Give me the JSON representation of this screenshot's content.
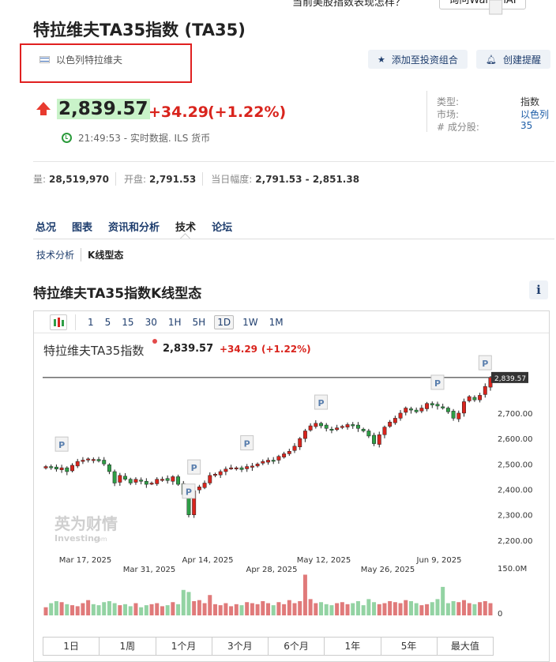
{
  "banner": {
    "question": "当前美股指数表现怎样？",
    "ask_button": "询问WarrenAI"
  },
  "header": {
    "title": "特拉维夫TA35指数 (TA35)",
    "country_tag": "以色列特拉维夫",
    "add_portfolio": "添加至投资组合",
    "create_alert": "创建提醒"
  },
  "quote": {
    "price": "2,839.57",
    "change": "+34.29",
    "change_pct": "(+1.22%)",
    "time_info": "21:49:53 - 实时数据. ILS 货币"
  },
  "info": [
    {
      "label": "类型:",
      "value": "指数"
    },
    {
      "label": "市场:",
      "value": "以色列"
    },
    {
      "label": "# 成分股:",
      "value": "35"
    }
  ],
  "stats": [
    {
      "label": "量:",
      "value": "28,519,970"
    },
    {
      "label": "开盘:",
      "value": "2,791.53"
    },
    {
      "label": "当日幅度:",
      "value": "2,791.53 - 2,851.38"
    }
  ],
  "tabs": [
    "总况",
    "图表",
    "资讯和分析",
    "技术",
    "论坛"
  ],
  "active_tab": "技术",
  "subtabs": [
    "技术分析",
    "K线型态"
  ],
  "section_title": "特拉维夫TA35指数K线型态",
  "info_icon": "i",
  "toolbar": {
    "intervals": [
      "1",
      "5",
      "15",
      "30",
      "1H",
      "5H",
      "1D",
      "1W",
      "1M"
    ],
    "selected": "1D"
  },
  "chart_header": {
    "name": "特拉维夫TA35指数",
    "price": "2,839.57",
    "change": "+34.29",
    "change_pct": "(+1.22%)"
  },
  "watermark": {
    "brand": "英为财情",
    "sub": "Investing",
    "suffix": ".com"
  },
  "ranges": [
    "1日",
    "1周",
    "1个月",
    "3个月",
    "6个月",
    "1年",
    "5年",
    "最大值"
  ],
  "colors": {
    "up": "#d9241d",
    "down": "#2e9e46",
    "link": "#1f3e6e",
    "vol_up": "#e07a7a",
    "vol_down": "#93d3a3"
  },
  "chart_data": {
    "type": "candlestick",
    "last_price_label": "2,839.57",
    "ylim": [
      2150,
      2880
    ],
    "y_ticks": [
      "2,700.00",
      "2,600.00",
      "2,500.00",
      "2,400.00",
      "2,300.00",
      "2,200.00"
    ],
    "y_tick_values": [
      2700,
      2600,
      2500,
      2400,
      2300,
      2200
    ],
    "x_labels_row1": [
      "Mar 17, 2025",
      "Apr 14, 2025",
      "May 12, 2025",
      "Jun 9, 2025"
    ],
    "x_labels_row2": [
      "Mar 31, 2025",
      "Apr 28, 2025",
      "May 26, 2025"
    ],
    "volume_axis_labels": [
      "150.0M",
      "0"
    ],
    "pattern_marker": "P",
    "pattern_indices": [
      3,
      27,
      28,
      38,
      52,
      74,
      83,
      85
    ],
    "closes": [
      2490,
      2485,
      2480,
      2485,
      2470,
      2495,
      2510,
      2515,
      2520,
      2518,
      2512,
      2500,
      2470,
      2425,
      2455,
      2440,
      2425,
      2440,
      2432,
      2420,
      2425,
      2440,
      2440,
      2435,
      2450,
      2420,
      2380,
      2300,
      2395,
      2410,
      2425,
      2455,
      2460,
      2470,
      2480,
      2485,
      2485,
      2478,
      2490,
      2492,
      2500,
      2510,
      2515,
      2512,
      2530,
      2540,
      2550,
      2570,
      2600,
      2630,
      2650,
      2660,
      2650,
      2640,
      2635,
      2642,
      2648,
      2655,
      2650,
      2640,
      2630,
      2610,
      2580,
      2615,
      2645,
      2665,
      2680,
      2700,
      2720,
      2712,
      2705,
      2720,
      2738,
      2732,
      2728,
      2720,
      2705,
      2680,
      2700,
      2745,
      2765,
      2752,
      2770,
      2805,
      2840
    ],
    "volumes": [
      8,
      12,
      14,
      13,
      11,
      10,
      9,
      12,
      15,
      11,
      10,
      13,
      14,
      12,
      10,
      11,
      9,
      12,
      8,
      10,
      11,
      12,
      9,
      10,
      13,
      11,
      25,
      23,
      14,
      15,
      12,
      20,
      11,
      10,
      12,
      9,
      11,
      10,
      13,
      12,
      11,
      14,
      12,
      10,
      13,
      11,
      15,
      12,
      14,
      40,
      16,
      12,
      13,
      11,
      10,
      12,
      13,
      11,
      12,
      14,
      10,
      16,
      13,
      11,
      12,
      14,
      13,
      12,
      15,
      14,
      12,
      10,
      11,
      13,
      16,
      28,
      12,
      14,
      13,
      15,
      12,
      11,
      13,
      14,
      12
    ]
  }
}
